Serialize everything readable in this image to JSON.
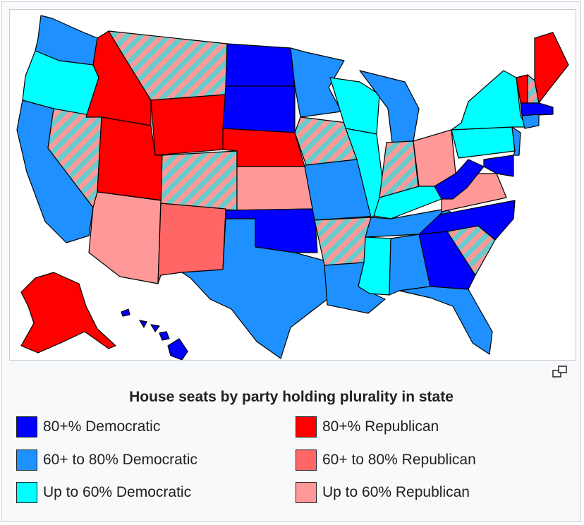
{
  "caption": "House seats by party holding plurality in state",
  "colors": {
    "dem80": "#0000ff",
    "dem60": "#1e90ff",
    "dem50": "#00ffff",
    "rep80": "#ff0000",
    "rep60": "#ff6666",
    "rep50": "#ff9999",
    "tie_a": "#66cccc",
    "tie_b": "#ff9999"
  },
  "legend": [
    {
      "label": "80+% Democratic",
      "color": "#0000ff"
    },
    {
      "label": "80+% Republican",
      "color": "#ff0000"
    },
    {
      "label": "60+ to 80% Democratic",
      "color": "#1e90ff"
    },
    {
      "label": "60+ to 80% Republican",
      "color": "#ff6666"
    },
    {
      "label": "Up to 60% Democratic",
      "color": "#00ffff"
    },
    {
      "label": "Up to 60% Republican",
      "color": "#ff9999"
    }
  ],
  "enlarge_icon": "enlarge-icon"
}
